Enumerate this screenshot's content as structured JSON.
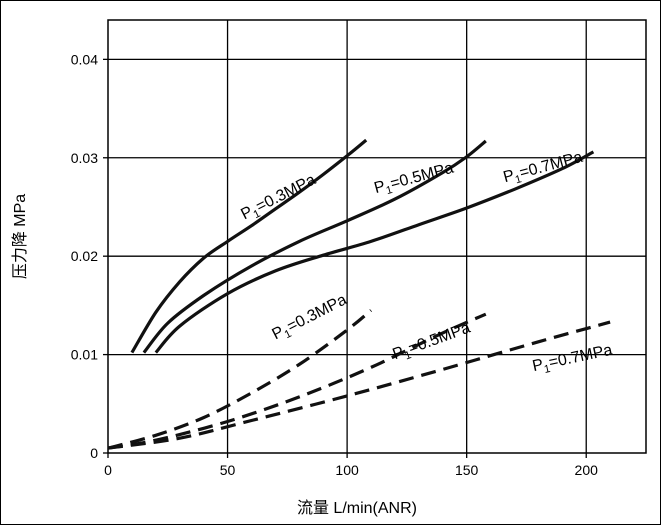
{
  "chart_data": {
    "type": "line",
    "xlabel": "流量 L/min(ANR)",
    "ylabel": "压力降 MPa",
    "xlim": [
      0,
      225
    ],
    "ylim": [
      0,
      0.044
    ],
    "x_ticks": [
      {
        "value": 0,
        "label": "0"
      },
      {
        "value": 50,
        "label": "50"
      },
      {
        "value": 100,
        "label": "100"
      },
      {
        "value": 150,
        "label": "150"
      },
      {
        "value": 200,
        "label": "200"
      }
    ],
    "y_ticks": [
      {
        "value": 0,
        "label": "0"
      },
      {
        "value": 0.01,
        "label": "0.01"
      },
      {
        "value": 0.02,
        "label": "0.02"
      },
      {
        "value": 0.03,
        "label": "0.03"
      },
      {
        "value": 0.04,
        "label": "0.04"
      }
    ],
    "grid": true,
    "series": [
      {
        "name": "P1=0.3MPa",
        "line": "solid",
        "points": [
          [
            10,
            0.0102
          ],
          [
            20,
            0.0143
          ],
          [
            30,
            0.0174
          ],
          [
            40,
            0.0198
          ],
          [
            50,
            0.0215
          ],
          [
            60,
            0.0231
          ],
          [
            70,
            0.0248
          ],
          [
            80,
            0.0265
          ],
          [
            90,
            0.0283
          ],
          [
            100,
            0.0302
          ],
          [
            108,
            0.0318
          ]
        ]
      },
      {
        "name": "P1=0.5MPa",
        "line": "solid",
        "points": [
          [
            15,
            0.0102
          ],
          [
            25,
            0.0132
          ],
          [
            40,
            0.016
          ],
          [
            60,
            0.019
          ],
          [
            80,
            0.0215
          ],
          [
            100,
            0.0236
          ],
          [
            120,
            0.0258
          ],
          [
            140,
            0.0285
          ],
          [
            150,
            0.0301
          ],
          [
            158,
            0.0317
          ]
        ]
      },
      {
        "name": "P1=0.7MPa",
        "line": "solid",
        "points": [
          [
            20,
            0.0102
          ],
          [
            30,
            0.0129
          ],
          [
            50,
            0.0162
          ],
          [
            70,
            0.0185
          ],
          [
            90,
            0.0201
          ],
          [
            110,
            0.0215
          ],
          [
            130,
            0.0232
          ],
          [
            150,
            0.0249
          ],
          [
            170,
            0.0268
          ],
          [
            190,
            0.0289
          ],
          [
            203,
            0.0306
          ]
        ]
      },
      {
        "name": "P1=0.3MPa",
        "line": "dashed",
        "points": [
          [
            0,
            0.0005
          ],
          [
            20,
            0.0018
          ],
          [
            40,
            0.0036
          ],
          [
            60,
            0.0061
          ],
          [
            80,
            0.009
          ],
          [
            100,
            0.0125
          ],
          [
            110,
            0.0145
          ]
        ]
      },
      {
        "name": "P1=0.5MPa",
        "line": "dashed",
        "points": [
          [
            0,
            0.0005
          ],
          [
            20,
            0.0013
          ],
          [
            50,
            0.0032
          ],
          [
            80,
            0.0057
          ],
          [
            110,
            0.0087
          ],
          [
            140,
            0.0122
          ],
          [
            158,
            0.0141
          ]
        ]
      },
      {
        "name": "P1=0.7MPa",
        "line": "dashed",
        "points": [
          [
            0,
            0.0005
          ],
          [
            30,
            0.0015
          ],
          [
            60,
            0.0033
          ],
          [
            100,
            0.0058
          ],
          [
            140,
            0.0085
          ],
          [
            180,
            0.0113
          ],
          [
            210,
            0.0133
          ]
        ]
      }
    ],
    "labels": [
      {
        "main": "P",
        "sub": "1",
        "rest": "=0.3MPa",
        "x": 57,
        "y": 0.0237,
        "angle": -27
      },
      {
        "main": "P",
        "sub": "1",
        "rest": "=0.5MPa",
        "x": 112,
        "y": 0.0264,
        "angle": -15
      },
      {
        "main": "P",
        "sub": "1",
        "rest": "=0.7MPa",
        "x": 166,
        "y": 0.0275,
        "angle": -15
      },
      {
        "main": "P",
        "sub": "1",
        "rest": "=0.3MPa",
        "x": 70,
        "y": 0.0115,
        "angle": -27
      },
      {
        "main": "P",
        "sub": "1",
        "rest": "=0.5MPa",
        "x": 120,
        "y": 0.0095,
        "angle": -20
      },
      {
        "main": "P",
        "sub": "1",
        "rest": "=0.7MPa",
        "x": 178,
        "y": 0.0083,
        "angle": -12
      }
    ]
  }
}
